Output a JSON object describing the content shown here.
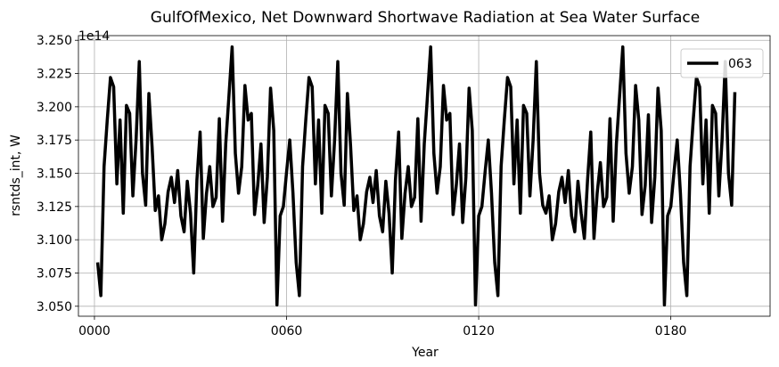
{
  "chart_data": {
    "type": "line",
    "title": "GulfOfMexico, Net Downward Shortwave Radiation at Sea Water Surface",
    "xlabel": "Year",
    "ylabel": "rsntds_int, W",
    "offset_text": "1e14",
    "xlim": [
      -5,
      211
    ],
    "ylim": [
      3.0425,
      3.2535
    ],
    "x_ticks": [
      0,
      60,
      120,
      180
    ],
    "x_tick_labels": [
      "0000",
      "0060",
      "0120",
      "0180"
    ],
    "y_ticks": [
      3.05,
      3.075,
      3.1,
      3.125,
      3.15,
      3.175,
      3.2,
      3.225,
      3.25
    ],
    "y_tick_labels": [
      "3.050",
      "3.075",
      "3.100",
      "3.125",
      "3.150",
      "3.175",
      "3.200",
      "3.225",
      "3.250"
    ],
    "grid": true,
    "legend_position": "top-right",
    "series": [
      {
        "name": "063",
        "color": "#000000",
        "x_start": 1,
        "x_step": 1,
        "values": [
          3.083,
          3.058,
          3.155,
          3.19,
          3.222,
          3.215,
          3.142,
          3.19,
          3.12,
          3.201,
          3.195,
          3.133,
          3.175,
          3.234,
          3.15,
          3.126,
          3.21,
          3.17,
          3.122,
          3.133,
          3.1,
          3.112,
          3.136,
          3.147,
          3.128,
          3.152,
          3.118,
          3.106,
          3.144,
          3.12,
          3.075,
          3.145,
          3.181,
          3.101,
          3.135,
          3.155,
          3.125,
          3.132,
          3.191,
          3.114,
          3.172,
          3.208,
          3.245,
          3.165,
          3.135,
          3.155,
          3.216,
          3.19,
          3.195,
          3.119,
          3.141,
          3.172,
          3.113,
          3.147,
          3.214,
          3.182,
          3.051,
          3.118,
          3.125,
          3.151,
          3.175,
          3.135,
          3.083,
          3.058,
          3.155,
          3.19,
          3.222,
          3.215,
          3.142,
          3.19,
          3.12,
          3.201,
          3.195,
          3.133,
          3.175,
          3.234,
          3.15,
          3.126,
          3.21,
          3.17,
          3.122,
          3.133,
          3.1,
          3.112,
          3.136,
          3.147,
          3.128,
          3.152,
          3.118,
          3.106,
          3.144,
          3.12,
          3.075,
          3.145,
          3.181,
          3.101,
          3.135,
          3.155,
          3.125,
          3.132,
          3.191,
          3.114,
          3.172,
          3.208,
          3.245,
          3.165,
          3.135,
          3.155,
          3.216,
          3.19,
          3.195,
          3.119,
          3.141,
          3.172,
          3.113,
          3.147,
          3.214,
          3.182,
          3.051,
          3.118,
          3.125,
          3.151,
          3.175,
          3.135,
          3.083,
          3.058,
          3.155,
          3.19,
          3.222,
          3.215,
          3.142,
          3.19,
          3.12,
          3.201,
          3.195,
          3.133,
          3.175,
          3.234,
          3.15,
          3.126,
          3.12,
          3.133,
          3.1,
          3.112,
          3.136,
          3.147,
          3.128,
          3.152,
          3.118,
          3.106,
          3.144,
          3.12,
          3.101,
          3.145,
          3.181,
          3.101,
          3.135,
          3.158,
          3.125,
          3.132,
          3.191,
          3.114,
          3.172,
          3.208,
          3.245,
          3.165,
          3.135,
          3.155,
          3.216,
          3.19,
          3.119,
          3.141,
          3.194,
          3.113,
          3.147,
          3.214,
          3.182,
          3.051,
          3.118,
          3.125,
          3.151,
          3.175,
          3.135,
          3.083,
          3.058,
          3.155,
          3.19,
          3.222,
          3.215,
          3.142,
          3.19,
          3.12,
          3.201,
          3.195,
          3.133,
          3.175,
          3.234,
          3.15,
          3.126,
          3.211
        ]
      }
    ]
  }
}
